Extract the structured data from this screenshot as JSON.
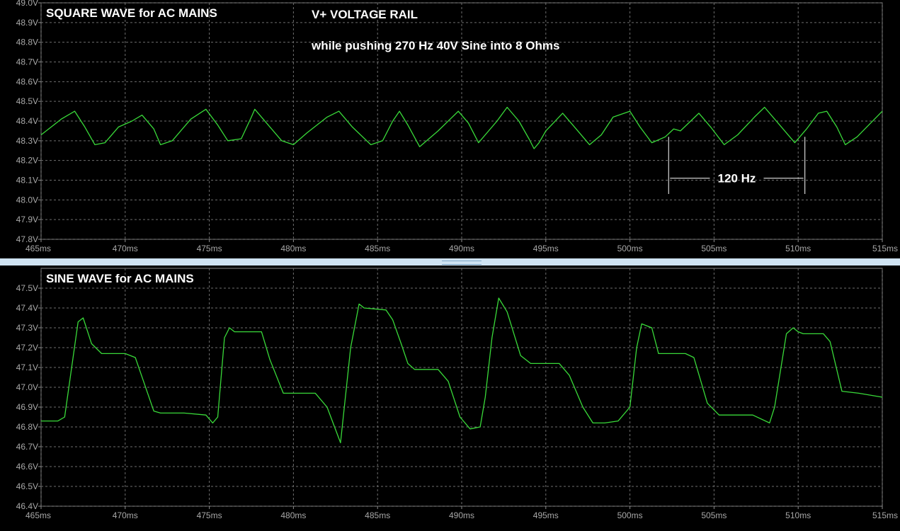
{
  "chart_data": [
    {
      "type": "line",
      "title": "SQUARE WAVE for AC MAINS",
      "annotations": [
        "V+ VOLTAGE RAIL",
        "while pushing 270 Hz 40V Sine into 8 Ohms",
        "120 Hz"
      ],
      "xlim": [
        465,
        515
      ],
      "ylim": [
        47.8,
        49.0
      ],
      "x_ticks": [
        465,
        470,
        475,
        480,
        485,
        490,
        495,
        500,
        505,
        510,
        515
      ],
      "x_tick_labels": [
        "465ms",
        "470ms",
        "475ms",
        "480ms",
        "485ms",
        "490ms",
        "495ms",
        "500ms",
        "505ms",
        "510ms",
        "515ms"
      ],
      "y_ticks": [
        47.8,
        47.9,
        48.0,
        48.1,
        48.2,
        48.3,
        48.4,
        48.5,
        48.6,
        48.7,
        48.8,
        48.9,
        49.0
      ],
      "y_tick_labels": [
        "47.8V",
        "47.9V",
        "48.0V",
        "48.1V",
        "48.2V",
        "48.3V",
        "48.4V",
        "48.5V",
        "48.6V",
        "48.7V",
        "48.8V",
        "48.9V",
        "49.0V"
      ],
      "marker": {
        "x_start": 502.3,
        "x_end": 510.4,
        "label": "120 Hz"
      },
      "grid": true,
      "color": "#39d939",
      "series": [
        {
          "x": [
            465,
            466.2,
            467.0,
            467.6,
            468.2,
            468.8,
            469.6,
            470.4,
            471.0,
            471.7,
            472.1,
            472.8,
            473.9,
            474.8,
            475.5,
            476.1,
            476.9,
            477.5,
            477.7,
            478.5,
            479.3,
            480.0,
            480.8,
            482.0,
            482.7,
            483.5,
            484.6,
            485.3,
            485.9,
            486.3,
            486.8,
            487.5,
            488.6,
            489.8,
            490.4,
            491.0,
            492.1,
            492.7,
            493.4,
            494.0,
            494.3,
            494.6,
            495.0,
            496.0,
            496.8,
            497.6,
            498.3,
            499.0,
            500.0,
            500.6,
            501.3,
            502.1,
            502.6,
            503.0,
            504.1,
            504.8,
            505.6,
            506.4,
            507.4,
            508.0,
            508.9,
            509.8,
            510.5,
            511.2,
            511.7,
            512.3,
            512.8,
            513.5,
            515.0
          ],
          "y": [
            48.33,
            48.41,
            48.45,
            48.37,
            48.28,
            48.29,
            48.37,
            48.4,
            48.43,
            48.36,
            48.28,
            48.3,
            48.41,
            48.46,
            48.38,
            48.3,
            48.31,
            48.42,
            48.46,
            48.38,
            48.3,
            48.28,
            48.34,
            48.42,
            48.45,
            48.37,
            48.28,
            48.3,
            48.4,
            48.45,
            48.38,
            48.27,
            48.35,
            48.45,
            48.39,
            48.29,
            48.4,
            48.47,
            48.4,
            48.31,
            48.26,
            48.29,
            48.35,
            48.44,
            48.36,
            48.28,
            48.33,
            48.42,
            48.45,
            48.37,
            48.29,
            48.32,
            48.36,
            48.35,
            48.44,
            48.37,
            48.28,
            48.33,
            48.42,
            48.47,
            48.38,
            48.29,
            48.36,
            48.44,
            48.45,
            48.37,
            48.28,
            48.32,
            48.45
          ]
        }
      ]
    },
    {
      "type": "line",
      "title": "SINE WAVE for AC MAINS",
      "xlim": [
        465,
        515
      ],
      "ylim": [
        46.4,
        47.6
      ],
      "x_ticks": [
        465,
        470,
        475,
        480,
        485,
        490,
        495,
        500,
        505,
        510,
        515
      ],
      "x_tick_labels": [
        "465ms",
        "470ms",
        "475ms",
        "480ms",
        "485ms",
        "490ms",
        "495ms",
        "500ms",
        "505ms",
        "510ms",
        "515ms"
      ],
      "y_ticks": [
        46.4,
        46.5,
        46.6,
        46.7,
        46.8,
        46.9,
        47.0,
        47.1,
        47.2,
        47.3,
        47.4,
        47.5
      ],
      "y_tick_labels": [
        "46.4V",
        "46.5V",
        "46.6V",
        "46.7V",
        "46.8V",
        "46.9V",
        "47.0V",
        "47.1V",
        "47.2V",
        "47.3V",
        "47.4V",
        "47.5V"
      ],
      "grid": true,
      "color": "#39d939",
      "series": [
        {
          "x": [
            465,
            466.0,
            466.4,
            467.2,
            467.5,
            468.0,
            468.6,
            470.0,
            470.6,
            471.7,
            472.1,
            473.5,
            474.8,
            475.2,
            475.5,
            475.9,
            476.2,
            476.5,
            478.1,
            478.6,
            479.4,
            480.2,
            481.3,
            482.0,
            482.8,
            483.4,
            483.9,
            484.2,
            485.5,
            485.9,
            486.4,
            486.8,
            487.2,
            488.6,
            489.2,
            489.9,
            490.5,
            491.1,
            491.4,
            491.8,
            492.2,
            492.7,
            493.5,
            494.1,
            495.0,
            495.8,
            496.4,
            497.2,
            497.8,
            498.5,
            499.3,
            500.0,
            500.4,
            500.7,
            501.3,
            501.7,
            503.3,
            503.8,
            504.6,
            505.3,
            506.5,
            507.3,
            508.3,
            508.6,
            509.3,
            509.7,
            510.0,
            510.3,
            511.5,
            511.9,
            512.6,
            513.6,
            515.0
          ],
          "y": [
            46.83,
            46.83,
            46.85,
            47.33,
            47.35,
            47.22,
            47.17,
            47.17,
            47.15,
            46.88,
            46.87,
            46.87,
            46.86,
            46.82,
            46.85,
            47.25,
            47.3,
            47.28,
            47.28,
            47.14,
            46.97,
            46.97,
            46.97,
            46.9,
            46.72,
            47.2,
            47.42,
            47.4,
            47.39,
            47.34,
            47.22,
            47.12,
            47.09,
            47.09,
            47.03,
            46.85,
            46.79,
            46.8,
            46.95,
            47.25,
            47.45,
            47.38,
            47.16,
            47.12,
            47.12,
            47.12,
            47.06,
            46.9,
            46.82,
            46.82,
            46.83,
            46.9,
            47.2,
            47.32,
            47.3,
            47.17,
            47.17,
            47.15,
            46.92,
            46.86,
            46.86,
            46.86,
            46.82,
            46.9,
            47.27,
            47.3,
            47.28,
            47.27,
            47.27,
            47.23,
            46.98,
            46.97,
            46.95
          ]
        }
      ]
    }
  ]
}
